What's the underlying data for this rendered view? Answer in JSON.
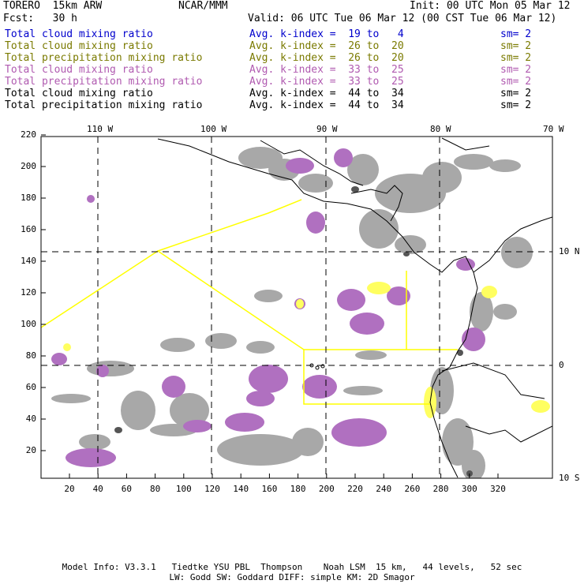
{
  "header": {
    "model": "TORERO  15km ARW",
    "org": "NCAR/MMM",
    "init": "Init: 00 UTC Mon 05 Mar 12",
    "fcst": "Fcst:   30 h",
    "valid": "Valid: 06 UTC Tue 06 Mar 12 (00 CST Tue 06 Mar 12)"
  },
  "legend": [
    {
      "field": "Total cloud mixing ratio",
      "kindex": "Avg. k-index =  19 to   4",
      "sm": "sm= 2",
      "color": "#0000cc"
    },
    {
      "field": "Total cloud mixing ratio",
      "kindex": "Avg. k-index =  26 to  20",
      "sm": "sm= 2",
      "color": "#7a7a00"
    },
    {
      "field": "Total precipitation mixing ratio",
      "kindex": "Avg. k-index =  26 to  20",
      "sm": "sm= 2",
      "color": "#7a7a00"
    },
    {
      "field": "Total cloud mixing ratio",
      "kindex": "Avg. k-index =  33 to  25",
      "sm": "sm= 2",
      "color": "#b05ab0"
    },
    {
      "field": "Total precipitation mixing ratio",
      "kindex": "Avg. k-index =  33 to  25",
      "sm": "sm= 2",
      "color": "#b05ab0"
    },
    {
      "field": "Total cloud mixing ratio",
      "kindex": "Avg. k-index =  44 to  34",
      "sm": "sm= 2",
      "color": "#000000"
    },
    {
      "field": "Total precipitation mixing ratio",
      "kindex": "Avg. k-index =  44 to  34",
      "sm": "sm= 2",
      "color": "#000000"
    }
  ],
  "map": {
    "top_lon_labels": [
      "110 W",
      "100 W",
      "90 W",
      "80 W",
      "70 W"
    ],
    "right_lat_labels": [
      "10 N",
      "0",
      "10 S"
    ],
    "x_ticks": [
      "20",
      "40",
      "60",
      "80",
      "100",
      "120",
      "140",
      "160",
      "180",
      "200",
      "220",
      "240",
      "260",
      "280",
      "300",
      "320"
    ],
    "y_ticks": [
      "20",
      "40",
      "60",
      "80",
      "100",
      "120",
      "140",
      "160",
      "180",
      "200",
      "220"
    ],
    "colors": {
      "cloud_gray": "#a8a8a8",
      "dark_gray": "#555555",
      "purple": "#b070c0",
      "yellow": "#ffff60",
      "track_yellow": "#ffff00",
      "coast": "#000000"
    }
  },
  "footer": {
    "line1": "Model Info: V3.3.1   Tiedtke YSU PBL  Thompson    Noah LSM  15 km,   44 levels,   52 sec",
    "line2": "LW: Godd SW: Goddard DIFF: simple KM: 2D Smagor"
  }
}
